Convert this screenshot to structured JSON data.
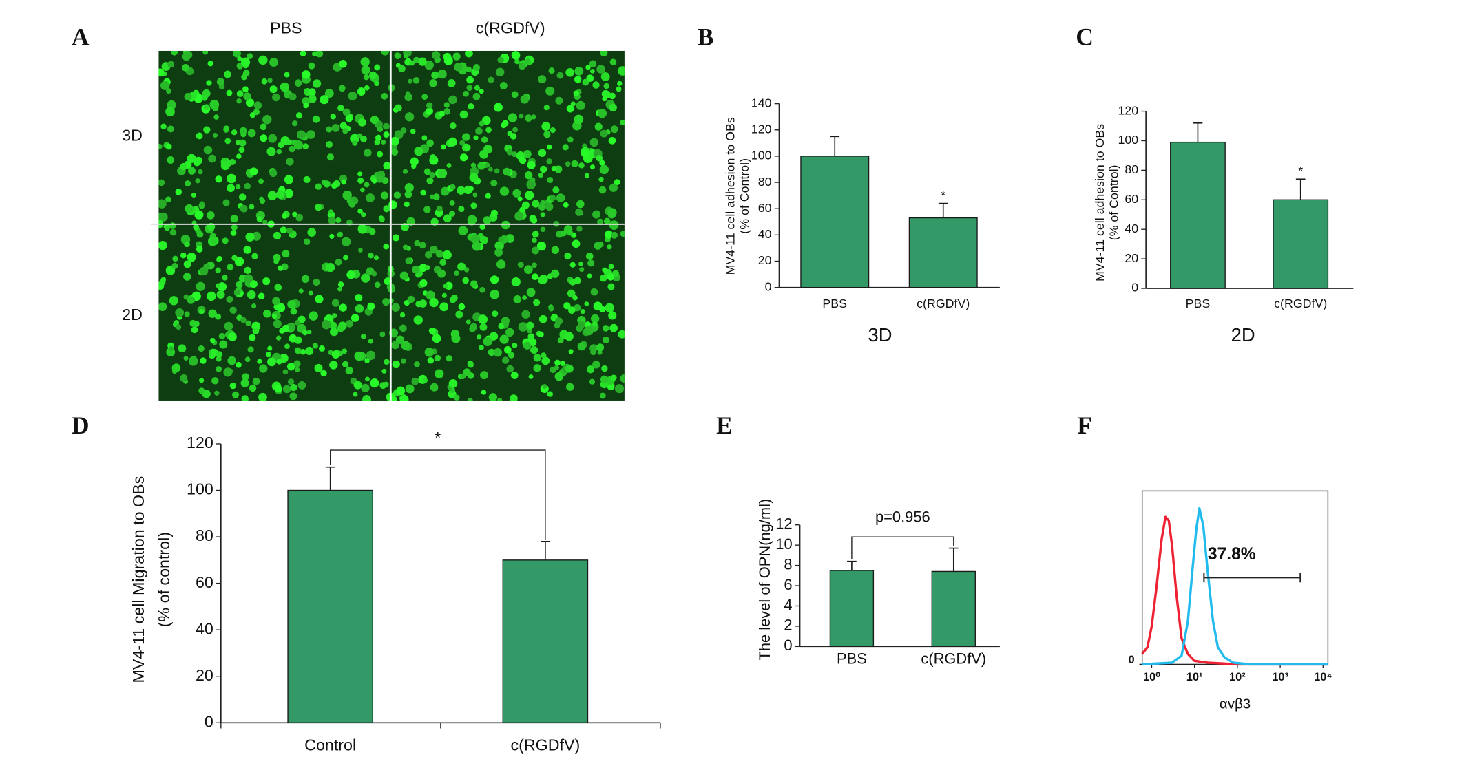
{
  "panel_labels": [
    "A",
    "B",
    "C",
    "D",
    "E",
    "F"
  ],
  "chart_data": [
    {
      "type": "image",
      "column_labels": [
        "PBS",
        "c(RGDfV)"
      ],
      "row_labels": [
        "3D",
        "2D"
      ]
    },
    {
      "type": "bar",
      "categories": [
        "PBS",
        "c(RGDfV)"
      ],
      "values": [
        100,
        53
      ],
      "errors": [
        15,
        11
      ],
      "markers": [
        null,
        "*"
      ],
      "color": "#339966",
      "ylim": [
        0,
        140
      ],
      "yticks": [
        0,
        20,
        40,
        60,
        80,
        100,
        120,
        140
      ],
      "xlabel": "3D",
      "ylabel": [
        "MV4-11 cell adhesion to OBs",
        "(% of Control)"
      ]
    },
    {
      "type": "bar",
      "categories": [
        "PBS",
        "c(RGDfV)"
      ],
      "values": [
        99,
        60
      ],
      "errors": [
        13,
        14
      ],
      "markers": [
        null,
        "*"
      ],
      "color": "#339966",
      "ylim": [
        0,
        120
      ],
      "yticks": [
        0,
        20,
        40,
        60,
        80,
        100,
        120
      ],
      "xlabel": "2D",
      "ylabel": [
        "MV4-11 cell adhesion to OBs",
        "(% of Control)"
      ]
    },
    {
      "type": "bar",
      "categories": [
        "Control",
        "c(RGDfV)"
      ],
      "values": [
        100,
        70
      ],
      "errors": [
        10,
        8
      ],
      "color": "#339966",
      "ylim": [
        0,
        120
      ],
      "yticks": [
        0,
        20,
        40,
        60,
        80,
        100,
        120
      ],
      "bracket": "*",
      "ylabel": [
        "MV4-11 cell Migration to OBs",
        "(% of control)"
      ]
    },
    {
      "type": "bar",
      "categories": [
        "PBS",
        "c(RGDfV)"
      ],
      "values": [
        7.5,
        7.4
      ],
      "errors": [
        0.9,
        2.3
      ],
      "color": "#339966",
      "ylim": [
        0,
        12
      ],
      "yticks": [
        0,
        2,
        4,
        6,
        8,
        10,
        12
      ],
      "bracket": "p=0.956",
      "ylabel": [
        "The level of OPN(ng/ml)"
      ]
    },
    {
      "type": "line",
      "xlabel": "αvβ3",
      "xscale": "log",
      "xlim": [
        0.6,
        13000
      ],
      "ylim": [
        0,
        100
      ],
      "xticks": [
        {
          "value": 1,
          "label": "10⁰"
        },
        {
          "value": 10,
          "label": "10¹"
        },
        {
          "value": 100,
          "label": "10²"
        },
        {
          "value": 1000,
          "label": "10³"
        },
        {
          "value": 10000,
          "label": "10⁴"
        }
      ],
      "yticks": [
        0
      ],
      "series": [
        {
          "color": "#ee2233",
          "x": [
            0.6,
            0.8,
            1.0,
            1.3,
            1.7,
            2.1,
            2.5,
            3.0,
            3.8,
            5,
            7,
            10,
            20,
            100,
            13000
          ],
          "values": [
            6,
            10,
            22,
            45,
            72,
            85,
            83,
            68,
            40,
            15,
            6,
            2,
            1,
            0,
            0
          ]
        },
        {
          "color": "#22bbee",
          "x": [
            0.6,
            3,
            5,
            7,
            9,
            11,
            13,
            16,
            20,
            27,
            35,
            50,
            80,
            200,
            13000
          ],
          "values": [
            0,
            1,
            5,
            25,
            55,
            78,
            90,
            80,
            55,
            25,
            10,
            4,
            1,
            0,
            0
          ]
        }
      ],
      "gate": {
        "label": "37.8%",
        "range": [
          16.6,
          2950
        ],
        "level": 50
      }
    }
  ]
}
